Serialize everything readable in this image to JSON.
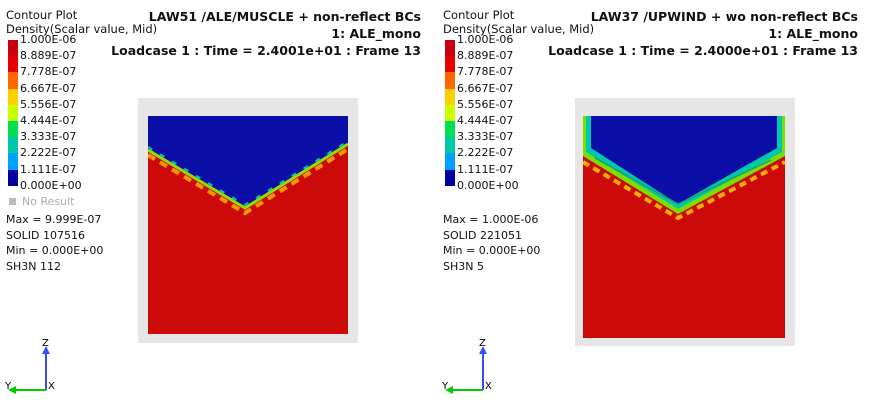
{
  "left": {
    "contour_title": "Contour Plot",
    "contour_subtitle": "Density(Scalar value, Mid)",
    "header_line1": "LAW51 /ALE/MUSCLE + non-reflect BCs",
    "header_line2": "1: ALE_mono",
    "header_line3": "Loadcase 1 : Time = 2.4001e+01 : Frame 13",
    "stats": {
      "max": "Max =  9.999E-07",
      "max_entity": "SOLID 107516",
      "min": "Min =  0.000E+00",
      "min_entity": "SH3N 112"
    }
  },
  "right": {
    "contour_title": "Contour Plot",
    "contour_subtitle": "Density(Scalar value, Mid)",
    "header_line1": "LAW37 /UPWIND + wo non-reflect BCs",
    "header_line2": "1: ALE_mono",
    "header_line3": "Loadcase 1 : Time = 2.4000e+01 : Frame 13",
    "stats": {
      "max": "Max = 1.000E-06",
      "max_entity": "SOLID 221051",
      "min": "Min =  0.000E+00",
      "min_entity": "SH3N 5"
    }
  },
  "legend": {
    "ticks": [
      "1.000E-06",
      "8.889E-07",
      "7.778E-07",
      "6.667E-07",
      "5.556E-07",
      "4.444E-07",
      "3.333E-07",
      "2.222E-07",
      "1.111E-07",
      "0.000E+00"
    ],
    "colors": [
      "#c8000d",
      "#e60000",
      "#ff6600",
      "#ffd000",
      "#c8ff00",
      "#00e050",
      "#00c8aa",
      "#00a0ff",
      "#0000a0"
    ],
    "no_result": "No Result"
  },
  "axes": {
    "z": "Z",
    "y": "Y",
    "x": "X"
  },
  "colors": {
    "fluid_red": "#cc0a0a",
    "void_blue": "#0b0fa8",
    "background_box": "#e6e6e6"
  }
}
